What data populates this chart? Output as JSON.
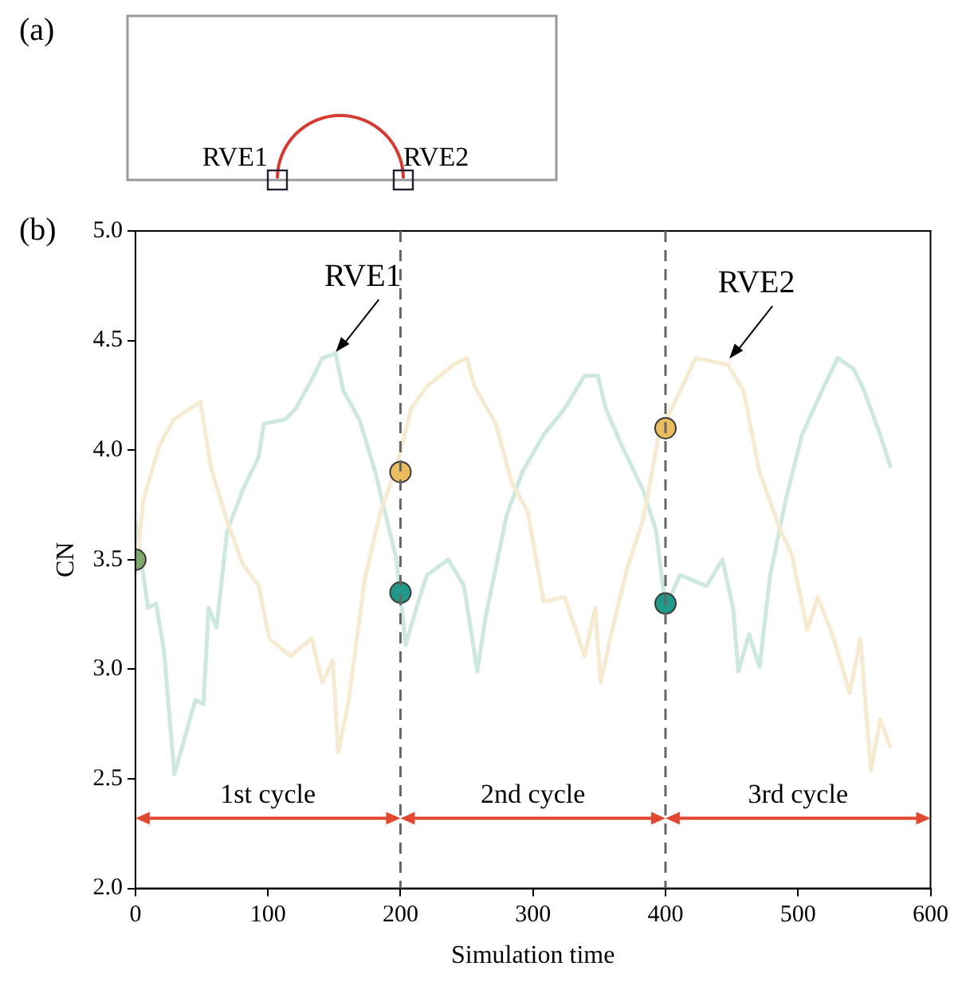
{
  "chart_data": [
    {
      "type": "other",
      "title": "(a)",
      "annotations": [
        "RVE1",
        "RVE2"
      ]
    },
    {
      "type": "line",
      "title": "(b)",
      "xlabel": "Simulation time",
      "ylabel": "CN",
      "xlim": [
        0,
        600
      ],
      "xticks": [
        0,
        100,
        200,
        300,
        400,
        500,
        600
      ],
      "ylim": [
        2,
        5
      ],
      "yticks": [
        {
          "value": 2,
          "label": "2.0"
        },
        {
          "value": 2.5,
          "label": "2.5"
        },
        {
          "value": 3,
          "label": "3.0"
        },
        {
          "value": 3.5,
          "label": "3.5"
        },
        {
          "value": 4,
          "label": "4.0"
        },
        {
          "value": 4.5,
          "label": "4.5"
        },
        {
          "value": 5,
          "label": "5.0"
        }
      ],
      "legend": false,
      "series": [
        {
          "type": "line",
          "color": "#cde7e1",
          "x": [
            0,
            9.5,
            15.5,
            21.5,
            29.4,
            45.3,
            51.3,
            55.3,
            61.2,
            69.2,
            81.1,
            93,
            97,
            113,
            121,
            133,
            141,
            151,
            157,
            169,
            181,
            189,
            197,
            200,
            204,
            212,
            220,
            236,
            248,
            258,
            264,
            280,
            292,
            308,
            324,
            339,
            349,
            355,
            367,
            383,
            393,
            400,
            411,
            431,
            443,
            451,
            455,
            463,
            471,
            479,
            491,
            503,
            518,
            530,
            542,
            550,
            562,
            570
          ],
          "values": [
            3.68,
            3.28,
            3.3,
            3.09,
            2.52,
            2.86,
            2.84,
            3.28,
            3.19,
            3.63,
            3.82,
            3.97,
            4.12,
            4.14,
            4.19,
            4.32,
            4.42,
            4.44,
            4.27,
            4.14,
            3.9,
            3.7,
            3.5,
            3.33,
            3.11,
            3.28,
            3.43,
            3.5,
            3.38,
            2.99,
            3.23,
            3.7,
            3.9,
            4.07,
            4.19,
            4.34,
            4.34,
            4.19,
            4.02,
            3.82,
            3.63,
            3.28,
            3.43,
            3.38,
            3.5,
            3.28,
            2.99,
            3.16,
            3.01,
            3.43,
            3.78,
            4.07,
            4.27,
            4.42,
            4.37,
            4.27,
            4.07,
            3.92
          ]
        },
        {
          "type": "line",
          "color": "#f6ead0",
          "x": [
            0,
            6,
            18,
            29,
            49,
            57,
            69,
            81,
            93,
            101,
            117,
            133,
            141,
            149,
            153,
            161,
            173,
            185,
            197,
            200,
            208,
            220,
            240,
            250,
            256,
            272,
            284,
            296,
            308,
            324,
            339,
            347,
            351,
            359,
            371,
            383,
            395,
            400,
            411,
            423,
            447,
            459,
            471,
            487,
            495,
            507,
            515,
            527,
            539,
            547,
            555,
            562,
            570
          ],
          "values": [
            3.43,
            3.77,
            4.02,
            4.14,
            4.22,
            3.92,
            3.68,
            3.48,
            3.38,
            3.14,
            3.06,
            3.14,
            2.94,
            3.04,
            2.62,
            2.86,
            3.41,
            3.72,
            3.92,
            null,
            4.19,
            4.29,
            4.39,
            4.42,
            4.29,
            4.12,
            3.85,
            3.72,
            3.31,
            3.33,
            3.06,
            3.28,
            2.94,
            3.16,
            3.46,
            3.68,
            4.07,
            null,
            4.27,
            4.42,
            4.39,
            4.27,
            3.9,
            3.63,
            3.53,
            3.18,
            3.33,
            3.14,
            2.89,
            3.14,
            2.54,
            2.77,
            2.64
          ]
        },
        {
          "type": "scatter",
          "marker": "circle",
          "x": [
            0,
            200,
            200,
            400,
            400
          ],
          "values": [
            3.5,
            3.9,
            3.35,
            4.1,
            3.3
          ],
          "colors": [
            "#7fa96b",
            "#ebbd5e",
            "#21998a",
            "#ebbd5e",
            "#21998a"
          ]
        }
      ],
      "ref_lines": [
        {
          "axis": "x",
          "value": 200,
          "color": "#666666",
          "line_style": "dashed"
        },
        {
          "axis": "x",
          "value": 400,
          "color": "#666666",
          "line_style": "dashed"
        }
      ],
      "annotations": [
        {
          "text": "RVE1",
          "x": 150,
          "y": 4.44
        },
        {
          "text": "RVE2",
          "x": 447,
          "y": 4.41
        },
        "1st cycle",
        "2nd cycle",
        "3rd cycle"
      ]
    }
  ]
}
